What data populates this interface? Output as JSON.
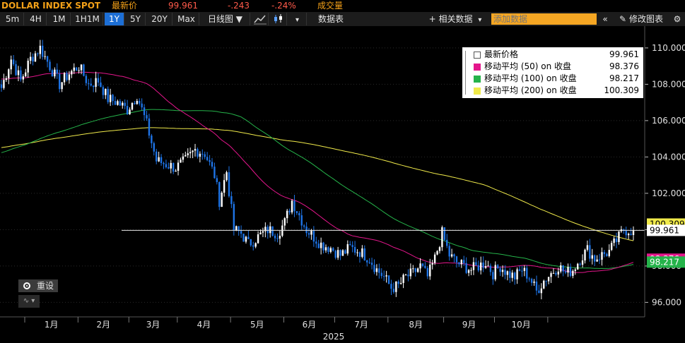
{
  "header": {
    "symbol": "DOLLAR INDEX SPOT",
    "last_label": "最新价",
    "last_price": "99.961",
    "change": "-.243",
    "change_pct": "-.24%",
    "volume_label": "成交量"
  },
  "toolbar": {
    "ranges": [
      "5m",
      "4H",
      "1M",
      "1H1M",
      "1Y",
      "5Y",
      "20Y",
      "Max"
    ],
    "selected_range": "1Y",
    "chart_type": "日线图 ▼",
    "table_label": "数据表",
    "related_label": "+ 相关数据",
    "related_arrow": "▾",
    "add_data_placeholder": "添加数据",
    "edit_chart_label": "修改图表",
    "collapse_icon": "«"
  },
  "legend": [
    {
      "name": "最新价格",
      "value": "99.961",
      "color": "#ffffff"
    },
    {
      "name": "移动平均 (50)  on 收盘",
      "value": "98.376",
      "color": "#e4168c"
    },
    {
      "name": "移动平均 (100)  on 收盘",
      "value": "98.217",
      "color": "#25b34a"
    },
    {
      "name": "移动平均 (200)  on 收盘",
      "value": "100.309",
      "color": "#f0ea4a"
    }
  ],
  "controls": {
    "reset_label": "重设",
    "mini_label": "▾"
  },
  "colors": {
    "accent": "#f4a118",
    "down": "#ff5a4a",
    "candle": "#1e74e6",
    "background": "#000000"
  },
  "chart_data": {
    "type": "candlestick",
    "x_labels": [
      "1月",
      "2月",
      "3月",
      "4月",
      "5月",
      "6月",
      "7月",
      "8月",
      "9月",
      "10月"
    ],
    "year_label": "2025",
    "y_ticks": [
      96,
      98,
      100,
      102,
      104,
      106,
      108,
      110
    ],
    "y_tick_labels": [
      "96.000",
      "98.000",
      "100.000",
      "102.000",
      "104.000",
      "106.000",
      "108.000",
      "110.000"
    ],
    "ylim": [
      95.2,
      111.2
    ],
    "last_price": 99.961,
    "price_label": "99.961",
    "ma_badges": [
      {
        "value": 100.309,
        "label": "100.309",
        "color": "#f0ea4a"
      },
      {
        "value": 98.376,
        "label": "98.376",
        "color": "#e4168c"
      },
      {
        "value": 98.217,
        "label": "98.217",
        "color": "#25b34a"
      }
    ],
    "close_anchors": [
      [
        0,
        107.8
      ],
      [
        4,
        109.4
      ],
      [
        8,
        108.2
      ],
      [
        12,
        109.4
      ],
      [
        16,
        110.0
      ],
      [
        20,
        109.0
      ],
      [
        24,
        108.0
      ],
      [
        28,
        108.6
      ],
      [
        32,
        109.0
      ],
      [
        36,
        108.0
      ],
      [
        40,
        108.2
      ],
      [
        44,
        107.2
      ],
      [
        48,
        107.0
      ],
      [
        52,
        106.6
      ],
      [
        56,
        107.4
      ],
      [
        60,
        105.8
      ],
      [
        64,
        103.8
      ],
      [
        68,
        103.6
      ],
      [
        72,
        103.4
      ],
      [
        76,
        103.8
      ],
      [
        80,
        104.4
      ],
      [
        84,
        104.2
      ],
      [
        88,
        103.0
      ],
      [
        90,
        101.6
      ],
      [
        93,
        103.2
      ],
      [
        96,
        100.0
      ],
      [
        99,
        99.8
      ],
      [
        102,
        99.2
      ],
      [
        106,
        99.6
      ],
      [
        110,
        100.0
      ],
      [
        114,
        99.8
      ],
      [
        117,
        100.4
      ],
      [
        120,
        101.6
      ],
      [
        123,
        100.8
      ],
      [
        126,
        100.0
      ],
      [
        129,
        99.6
      ],
      [
        132,
        99.2
      ],
      [
        136,
        99.0
      ],
      [
        140,
        98.6
      ],
      [
        144,
        99.0
      ],
      [
        148,
        98.8
      ],
      [
        152,
        98.4
      ],
      [
        155,
        97.8
      ],
      [
        158,
        97.4
      ],
      [
        161,
        96.8
      ],
      [
        164,
        96.9
      ],
      [
        167,
        97.4
      ],
      [
        170,
        97.6
      ],
      [
        173,
        98.0
      ],
      [
        176,
        97.4
      ],
      [
        179,
        98.4
      ],
      [
        182,
        99.8
      ],
      [
        185,
        98.6
      ],
      [
        188,
        98.2
      ],
      [
        191,
        98.0
      ],
      [
        194,
        97.8
      ],
      [
        197,
        98.0
      ],
      [
        200,
        98.2
      ],
      [
        203,
        97.6
      ],
      [
        206,
        98.0
      ],
      [
        209,
        97.6
      ],
      [
        212,
        97.4
      ],
      [
        215,
        97.8
      ],
      [
        218,
        97.4
      ],
      [
        221,
        96.6
      ],
      [
        224,
        97.2
      ],
      [
        227,
        97.6
      ],
      [
        230,
        98.0
      ],
      [
        233,
        97.6
      ],
      [
        236,
        97.8
      ],
      [
        239,
        98.4
      ],
      [
        242,
        98.9
      ],
      [
        245,
        98.4
      ],
      [
        248,
        98.6
      ],
      [
        251,
        98.8
      ],
      [
        254,
        99.4
      ],
      [
        257,
        100.0
      ],
      [
        260,
        99.961
      ]
    ]
  }
}
